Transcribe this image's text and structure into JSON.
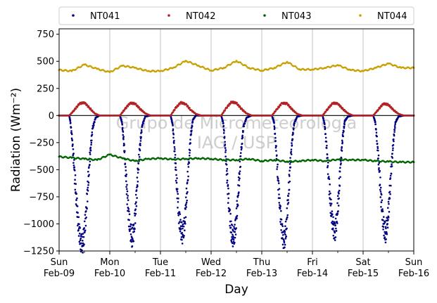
{
  "chart_data": {
    "type": "scatter",
    "title": "",
    "xlabel": "Day",
    "ylabel": "Radiation (Wm⁻²)",
    "ylim": [
      -1250,
      800
    ],
    "xlim": [
      0,
      7
    ],
    "yticks": [
      -1250,
      -1000,
      -750,
      -500,
      -250,
      0,
      250,
      500,
      750
    ],
    "ytick_labels": [
      "−1250",
      "−1000",
      "−750",
      "−500",
      "−250",
      "0",
      "250",
      "500",
      "750"
    ],
    "xticks": [
      {
        "day": 0,
        "weekday": "Sun",
        "date": "Feb-09"
      },
      {
        "day": 1,
        "weekday": "Mon",
        "date": "Feb-10"
      },
      {
        "day": 2,
        "weekday": "Tue",
        "date": "Feb-11"
      },
      {
        "day": 3,
        "weekday": "Wed",
        "date": "Feb-12"
      },
      {
        "day": 4,
        "weekday": "Thu",
        "date": "Feb-13"
      },
      {
        "day": 5,
        "weekday": "Fri",
        "date": "Feb-14"
      },
      {
        "day": 6,
        "weekday": "Sat",
        "date": "Feb-15"
      },
      {
        "day": 7,
        "weekday": "Sun",
        "date": "Feb-16"
      }
    ],
    "grid": "vertical",
    "reference_line_y": 0,
    "legend_placement": "top, above plot",
    "watermark": [
      "Grupo de Micrometeorologia",
      "IAG / USP"
    ],
    "series": [
      {
        "name": "NT041",
        "color": "#00007f",
        "x": [
          0.0,
          0.2,
          0.22,
          0.26,
          0.3,
          0.34,
          0.38,
          0.42,
          0.46,
          0.5,
          0.54,
          0.58,
          0.62,
          0.66,
          0.72,
          0.8,
          1.0,
          1.2,
          1.24,
          1.28,
          1.32,
          1.36,
          1.4,
          1.44,
          1.48,
          1.52,
          1.56,
          1.6,
          1.64,
          1.7,
          1.8,
          2.0,
          2.2,
          2.24,
          2.28,
          2.32,
          2.36,
          2.4,
          2.44,
          2.48,
          2.52,
          2.56,
          2.6,
          2.64,
          2.7,
          2.8,
          3.0,
          3.2,
          3.24,
          3.28,
          3.32,
          3.36,
          3.4,
          3.44,
          3.48,
          3.52,
          3.56,
          3.6,
          3.64,
          3.7,
          3.8,
          4.0,
          4.2,
          4.24,
          4.28,
          4.32,
          4.36,
          4.4,
          4.44,
          4.48,
          4.52,
          4.56,
          4.6,
          4.64,
          4.7,
          4.8,
          5.0,
          5.2,
          5.24,
          5.28,
          5.32,
          5.36,
          5.4,
          5.44,
          5.48,
          5.52,
          5.56,
          5.6,
          5.64,
          5.7,
          5.8,
          6.0,
          6.2,
          6.24,
          6.28,
          6.32,
          6.36,
          6.4,
          6.44,
          6.48,
          6.52,
          6.56,
          6.6,
          6.64,
          6.7,
          6.8,
          7.0
        ],
        "y": [
          0,
          0,
          -50,
          -230,
          -500,
          -780,
          -1000,
          -1150,
          -1200,
          -1080,
          -850,
          -560,
          -320,
          -120,
          -20,
          0,
          0,
          0,
          -60,
          -260,
          -560,
          -850,
          -1050,
          -1130,
          -1050,
          -800,
          -500,
          -260,
          -90,
          -10,
          0,
          0,
          0,
          -80,
          -330,
          -620,
          -900,
          -1050,
          -1100,
          -980,
          -720,
          -430,
          -180,
          -40,
          0,
          0,
          0,
          0,
          -70,
          -300,
          -600,
          -880,
          -1080,
          -1130,
          -1050,
          -820,
          -540,
          -290,
          -100,
          -20,
          0,
          0,
          0,
          -60,
          -280,
          -580,
          -860,
          -1080,
          -1160,
          -1050,
          -780,
          -480,
          -230,
          -70,
          -10,
          0,
          0,
          0,
          -80,
          -300,
          -580,
          -830,
          -1000,
          -1080,
          -980,
          -720,
          -420,
          -190,
          -50,
          -10,
          0,
          0,
          0,
          -60,
          -260,
          -520,
          -800,
          -1000,
          -1090,
          -1000,
          -760,
          -470,
          -220,
          -60,
          -10,
          0,
          0
        ]
      },
      {
        "name": "NT042",
        "color": "#b22222",
        "x": [
          0.0,
          0.2,
          0.3,
          0.4,
          0.5,
          0.6,
          0.7,
          0.8,
          1.0,
          1.2,
          1.3,
          1.4,
          1.5,
          1.6,
          1.7,
          1.8,
          2.0,
          2.2,
          2.3,
          2.4,
          2.5,
          2.6,
          2.7,
          2.8,
          3.0,
          3.2,
          3.3,
          3.4,
          3.5,
          3.6,
          3.7,
          3.8,
          4.0,
          4.2,
          4.3,
          4.4,
          4.5,
          4.6,
          4.7,
          4.8,
          5.0,
          5.2,
          5.3,
          5.4,
          5.5,
          5.6,
          5.7,
          5.8,
          6.0,
          6.2,
          6.3,
          6.4,
          6.5,
          6.6,
          6.7,
          6.8,
          7.0
        ],
        "y": [
          0,
          0,
          50,
          110,
          120,
          70,
          20,
          0,
          0,
          0,
          60,
          115,
          110,
          60,
          20,
          0,
          0,
          0,
          70,
          120,
          105,
          50,
          15,
          0,
          0,
          0,
          70,
          125,
          115,
          60,
          20,
          0,
          0,
          0,
          60,
          115,
          110,
          55,
          15,
          0,
          0,
          0,
          60,
          115,
          110,
          60,
          20,
          0,
          0,
          0,
          55,
          110,
          100,
          50,
          15,
          0,
          0
        ]
      },
      {
        "name": "NT043",
        "color": "#006400",
        "x": [
          0.0,
          0.25,
          0.5,
          0.75,
          1.0,
          1.25,
          1.5,
          1.75,
          2.0,
          2.25,
          2.5,
          2.75,
          3.0,
          3.25,
          3.5,
          3.75,
          4.0,
          4.25,
          4.5,
          4.75,
          5.0,
          5.25,
          5.5,
          5.75,
          6.0,
          6.25,
          6.5,
          6.75,
          7.0
        ],
        "y": [
          -380,
          -390,
          -400,
          -410,
          -360,
          -395,
          -420,
          -400,
          -395,
          -405,
          -400,
          -395,
          -400,
          -410,
          -410,
          -400,
          -420,
          -410,
          -425,
          -420,
          -410,
          -420,
          -405,
          -410,
          -410,
          -420,
          -425,
          -430,
          -430
        ]
      },
      {
        "name": "NT044",
        "color": "#c8a000",
        "x": [
          0.0,
          0.25,
          0.5,
          0.75,
          1.0,
          1.25,
          1.5,
          1.75,
          2.0,
          2.25,
          2.5,
          2.75,
          3.0,
          3.25,
          3.5,
          3.75,
          4.0,
          4.25,
          4.5,
          4.75,
          5.0,
          5.25,
          5.5,
          5.75,
          6.0,
          6.25,
          6.5,
          6.75,
          7.0
        ],
        "y": [
          420,
          410,
          470,
          430,
          400,
          460,
          440,
          410,
          410,
          440,
          505,
          460,
          415,
          440,
          505,
          440,
          415,
          440,
          495,
          425,
          425,
          440,
          465,
          420,
          410,
          440,
          480,
          440,
          440
        ]
      }
    ]
  }
}
